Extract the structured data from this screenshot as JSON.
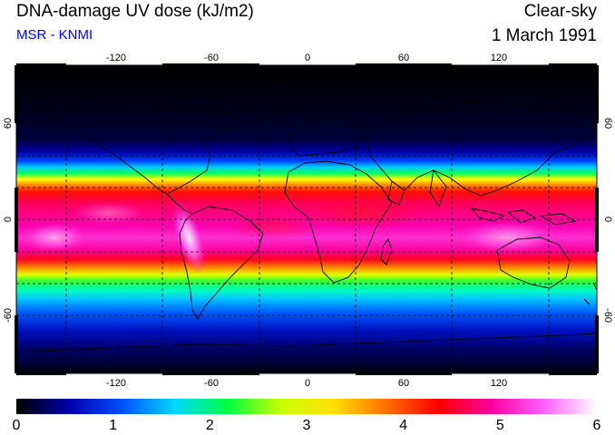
{
  "title": "DNA-damage UV dose (kJ/m2)",
  "subtitle": "MSR - KNMI",
  "condition": "Clear-sky",
  "date": "1 March 1991",
  "map": {
    "lon_ticks": [
      "-120",
      "-60",
      "0",
      "60",
      "120"
    ],
    "lat_ticks": [
      "60",
      "0",
      "-60"
    ],
    "gridlines": "dashed"
  },
  "colorbar": {
    "labels": [
      "0",
      "1",
      "2",
      "3",
      "4",
      "5",
      "6"
    ],
    "min": 0,
    "max": 6,
    "colors": [
      "#000000",
      "#0000b0",
      "#0050ff",
      "#00d8ff",
      "#00ff40",
      "#c8ff00",
      "#ffe000",
      "#ff7000",
      "#ff0000",
      "#ff00a0",
      "#ff60ff",
      "#ffffff"
    ]
  },
  "colors": {
    "subtitle": "#0000ff",
    "text": "#000000"
  }
}
